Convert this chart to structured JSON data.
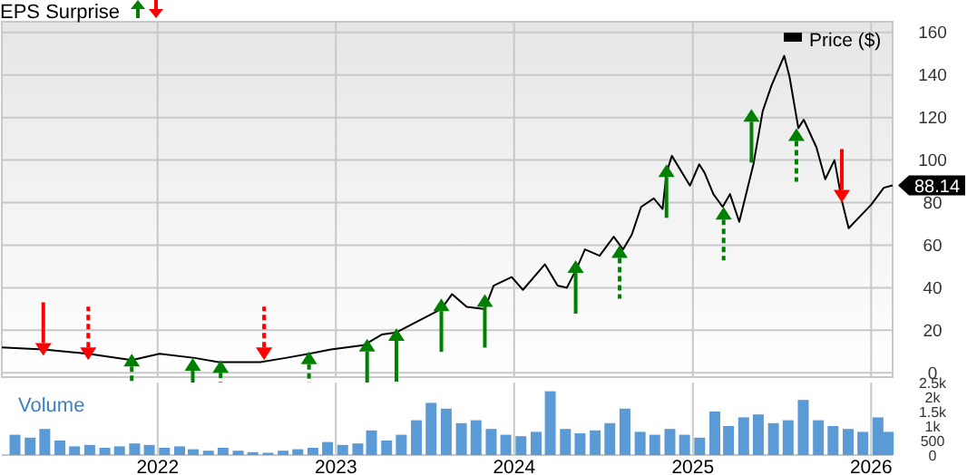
{
  "chart_data": [
    {
      "type": "line",
      "title": "EPS Surprise",
      "legend": "top right",
      "grid": true,
      "tick_labels": "y",
      "xlim": [
        "2021-02-16",
        "2026-02-14"
      ],
      "ylim": [
        -2,
        165
      ],
      "yticks": [
        0,
        20,
        40,
        60,
        80,
        100,
        120,
        140,
        160
      ],
      "xticks": [
        {
          "value": "2022-01-01",
          "label": null
        },
        {
          "value": "2023-01-01",
          "label": null
        },
        {
          "value": "2024-01-01",
          "label": null
        },
        {
          "value": "2025-01-01",
          "label": null
        },
        {
          "value": "2026-01-01",
          "label": null
        }
      ],
      "annotations": [
        {
          "text": "88.14",
          "x": "2026-02-14",
          "y": 88.14
        }
      ],
      "series": [
        {
          "name": "Price ($)",
          "type": "line",
          "color": "#000000",
          "line_style": "solid",
          "x": [
            "2021-02-16",
            "2021-05-12",
            "2021-08-12",
            "2021-11-09",
            "2022-01-05",
            "2022-03-18",
            "2022-05-06",
            "2022-07-30",
            "2022-09-20",
            "2022-11-07",
            "2022-12-22",
            "2023-02-27",
            "2023-04-05",
            "2023-05-05",
            "2023-06-07",
            "2023-08-05",
            "2023-08-27",
            "2023-09-26",
            "2023-11-02",
            "2023-11-20",
            "2023-12-27",
            "2024-01-19",
            "2024-03-04",
            "2024-03-30",
            "2024-04-18",
            "2024-05-10",
            "2024-05-25",
            "2024-06-24",
            "2024-07-23",
            "2024-08-11",
            "2024-08-29",
            "2024-09-17",
            "2024-10-13",
            "2024-10-31",
            "2024-11-08",
            "2024-11-19",
            "2024-12-26",
            "2025-01-14",
            "2025-01-25",
            "2025-02-12",
            "2025-03-03",
            "2025-03-18",
            "2025-04-06",
            "2025-05-05",
            "2025-05-24",
            "2025-06-11",
            "2025-07-07",
            "2025-07-18",
            "2025-08-05",
            "2025-08-16",
            "2025-09-11",
            "2025-09-29",
            "2025-10-18",
            "2025-11-02",
            "2025-11-16",
            "2026-01-01",
            "2026-01-27",
            "2026-02-14"
          ],
          "values": [
            12,
            11,
            9,
            6,
            9,
            7,
            5,
            5,
            7,
            9,
            11,
            13,
            18,
            19,
            23,
            30,
            37,
            31,
            30,
            41,
            45,
            39,
            51,
            41,
            40,
            50,
            58,
            55,
            64,
            58,
            65,
            78,
            82,
            77,
            94,
            102,
            88,
            98,
            94,
            84,
            78,
            84,
            71,
            98,
            123,
            135,
            149,
            139,
            115,
            119,
            106,
            91,
            100,
            81,
            68,
            79,
            87,
            88.14
          ]
        },
        {
          "type": "scatter",
          "color": "#008000",
          "marker": "triangle",
          "line_style": "solid",
          "x": [
            "2022-03-14",
            "2023-03-06",
            "2023-05-05",
            "2023-08-05",
            "2023-11-02",
            "2024-05-06",
            "2024-11-08",
            "2025-05-01"
          ],
          "values": [
            4,
            13,
            18,
            32,
            34,
            50,
            95,
            121
          ]
        },
        {
          "type": "scatter",
          "color": "#008000",
          "marker": "triangle",
          "line_style": "dashed",
          "x": [
            "2021-11-09",
            "2022-05-10",
            "2022-11-07",
            "2024-08-04",
            "2025-03-05",
            "2025-08-01"
          ],
          "values": [
            6,
            3,
            7,
            57,
            75,
            112
          ]
        },
        {
          "type": "scatter",
          "color": "#ff0000",
          "marker": "triangle",
          "line_style": "solid",
          "x": [
            "2021-05-12",
            "2025-11-02"
          ],
          "values": [
            11,
            83
          ]
        },
        {
          "type": "scatter",
          "color": "#ff0000",
          "marker": "triangle",
          "line_style": "dashed",
          "x": [
            "2021-08-12",
            "2022-08-07"
          ],
          "values": [
            9,
            9
          ]
        }
      ]
    },
    {
      "type": "bar",
      "ylabel": "Volume",
      "grid": "x",
      "color": "#5b9bd5",
      "xlim": [
        "2021-02-16",
        "2026-02-14"
      ],
      "ylim": [
        0,
        2500
      ],
      "yticks": [
        0,
        500,
        {
          "value": 1000,
          "label": "1k"
        },
        {
          "value": 1500,
          "label": "1.5k"
        },
        {
          "value": 2000,
          "label": "2k"
        },
        {
          "value": 2500,
          "label": "2.5k"
        }
      ],
      "xticks": [
        {
          "value": "2022-01-01",
          "label": "2022"
        },
        {
          "value": "2023-01-01",
          "label": "2023"
        },
        {
          "value": "2024-01-01",
          "label": "2024"
        },
        {
          "value": "2025-01-01",
          "label": "2025"
        },
        {
          "value": "2026-01-01",
          "label": "2026"
        }
      ],
      "x": [
        "2021-03-15",
        "2021-04-15",
        "2021-05-15",
        "2021-06-15",
        "2021-07-15",
        "2021-08-15",
        "2021-09-15",
        "2021-10-15",
        "2021-11-15",
        "2021-12-15",
        "2022-01-15",
        "2022-02-15",
        "2022-03-15",
        "2022-04-15",
        "2022-05-15",
        "2022-06-15",
        "2022-07-15",
        "2022-08-15",
        "2022-09-15",
        "2022-10-15",
        "2022-11-15",
        "2022-12-15",
        "2023-01-15",
        "2023-02-15",
        "2023-03-15",
        "2023-04-15",
        "2023-05-15",
        "2023-06-15",
        "2023-07-15",
        "2023-08-15",
        "2023-09-15",
        "2023-10-15",
        "2023-11-15",
        "2023-12-15",
        "2024-01-15",
        "2024-02-15",
        "2024-03-15",
        "2024-04-15",
        "2024-05-15",
        "2024-06-15",
        "2024-07-15",
        "2024-08-15",
        "2024-09-15",
        "2024-10-15",
        "2024-11-15",
        "2024-12-15",
        "2025-01-15",
        "2025-02-15",
        "2025-03-15",
        "2025-04-15",
        "2025-05-15",
        "2025-06-15",
        "2025-07-15",
        "2025-08-15",
        "2025-09-15",
        "2025-10-15",
        "2025-11-15",
        "2025-12-15",
        "2026-01-15",
        "2026-02-05"
      ],
      "values": [
        700,
        600,
        900,
        500,
        300,
        350,
        250,
        300,
        400,
        350,
        250,
        300,
        200,
        150,
        250,
        150,
        100,
        80,
        150,
        200,
        250,
        450,
        350,
        400,
        850,
        500,
        700,
        1200,
        1800,
        1600,
        1100,
        1200,
        900,
        700,
        650,
        800,
        2200,
        900,
        750,
        850,
        1100,
        1600,
        800,
        700,
        900,
        700,
        600,
        1500,
        1000,
        1300,
        1400,
        1100,
        1200,
        1900,
        1200,
        1000,
        900,
        800,
        1300,
        800
      ]
    }
  ]
}
